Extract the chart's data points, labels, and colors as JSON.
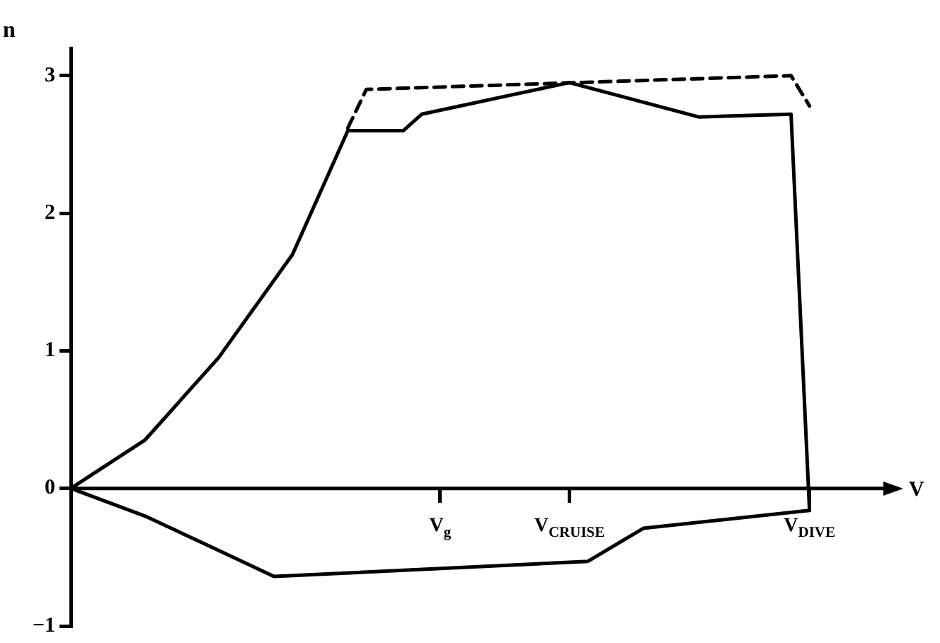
{
  "chart_data": {
    "type": "line",
    "xlabel": "V",
    "ylabel": "n",
    "ylim": [
      -1,
      3.2
    ],
    "categories": [
      null,
      null,
      null,
      null,
      null,
      null,
      null,
      null,
      null,
      null,
      null,
      null,
      null,
      null,
      null,
      null,
      null,
      null,
      null,
      null,
      "V$_{g}$",
      null,
      null,
      null,
      null,
      null,
      null,
      "V$_{CRUISE}$",
      null,
      null,
      null,
      null,
      null,
      null,
      null,
      null,
      null,
      null,
      null,
      null,
      "V$_{DIVE}$",
      null,
      null,
      null,
      null
    ],
    "yticks": [
      -1,
      0,
      1,
      2,
      3
    ],
    "grid": false,
    "legend": false,
    "marker": "none",
    "series": [
      {
        "color": "#000000",
        "line_style": "solid",
        "values": [
          0,
          null,
          null,
          null,
          0.35,
          null,
          null,
          null,
          0.95,
          null,
          null,
          null,
          1.7,
          null,
          null,
          2.6,
          null,
          null,
          2.6,
          2.72,
          null,
          null,
          null,
          null,
          null,
          null,
          null,
          2.95,
          null,
          null,
          null,
          null,
          null,
          null,
          2.7,
          null,
          null,
          null,
          null,
          2.72,
          -0.16,
          null,
          null,
          null,
          null
        ]
      },
      {
        "color": "#000000",
        "line_style": "solid",
        "values": [
          0,
          null,
          null,
          null,
          -0.2,
          null,
          null,
          null,
          -0.45,
          null,
          null,
          -0.64,
          null,
          null,
          null,
          null,
          null,
          null,
          null,
          null,
          null,
          null,
          null,
          null,
          null,
          null,
          null,
          null,
          -0.53,
          null,
          null,
          -0.29,
          null,
          null,
          null,
          null,
          null,
          null,
          null,
          null,
          -0.16,
          null,
          null,
          null,
          null
        ]
      },
      {
        "color": "#000000",
        "line_style": "dashed",
        "values": [
          null,
          null,
          null,
          null,
          null,
          null,
          null,
          null,
          null,
          null,
          null,
          null,
          null,
          null,
          null,
          2.62,
          2.9,
          null,
          null,
          null,
          null,
          null,
          null,
          null,
          null,
          null,
          null,
          null,
          null,
          null,
          null,
          null,
          null,
          null,
          null,
          null,
          null,
          null,
          null,
          3.0,
          2.78,
          null,
          null,
          null,
          null
        ]
      }
    ]
  }
}
